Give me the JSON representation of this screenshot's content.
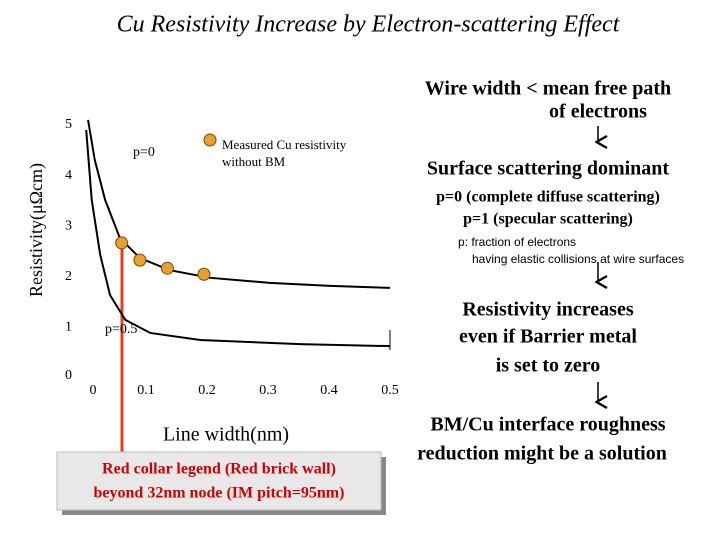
{
  "chart_data": {
    "type": "scatter",
    "title": "Cu Resistivity Increase by Electron-scattering Effect",
    "x_label": "Line width(nm)",
    "y_label": "Resistivity(μΩcm)",
    "xlim": [
      0,
      0.5
    ],
    "xticks": [
      0,
      0.1,
      0.2,
      0.3,
      0.4,
      0.5
    ],
    "ylim": [
      0,
      5
    ],
    "yticks": [
      0,
      1,
      2,
      3,
      4,
      5
    ],
    "series": [
      {
        "name": "p=0",
        "color": "#000000",
        "style": "line",
        "x": [
          0.005,
          0.016,
          0.033,
          0.057,
          0.09,
          0.139,
          0.205,
          0.303,
          0.402,
          0.5
        ],
        "values": [
          5.1,
          4.31,
          3.52,
          2.77,
          2.37,
          2.13,
          1.98,
          1.88,
          1.82,
          1.78
        ]
      },
      {
        "name": "p=0.5",
        "color": "#000000",
        "style": "line",
        "x": [
          0.002,
          0.011,
          0.025,
          0.041,
          0.066,
          0.107,
          0.189,
          0.352,
          0.5
        ],
        "values": [
          4.9,
          3.52,
          2.43,
          1.64,
          1.15,
          0.89,
          0.75,
          0.67,
          0.63
        ]
      },
      {
        "name": "Measured Cu resistivity without BM",
        "color": "#e8a030",
        "style": "marker",
        "x": [
          0.06,
          0.09,
          0.135,
          0.195
        ],
        "values": [
          2.67,
          2.33,
          2.17,
          2.05
        ]
      }
    ],
    "annotation": [
      "Red collar legend (Red brick wall)",
      "beyond 32nm node (IM pitch=95nm)"
    ]
  },
  "side_text": {
    "block_1": [
      "Wire width < mean free path",
      "of electrons"
    ],
    "block_2": "Surface scattering dominant",
    "block_3": [
      "p=0 (complete diffuse scattering)",
      "p=1 (specular scattering)"
    ],
    "block_4": [
      "p: fraction of electrons",
      "having elastic collisions at wire surfaces"
    ],
    "block_5": [
      "Resistivity increases",
      "even if Barrier metal",
      "is set to zero"
    ],
    "block_6": [
      "BM/Cu interface roughness",
      "reduction might be a solution"
    ]
  }
}
